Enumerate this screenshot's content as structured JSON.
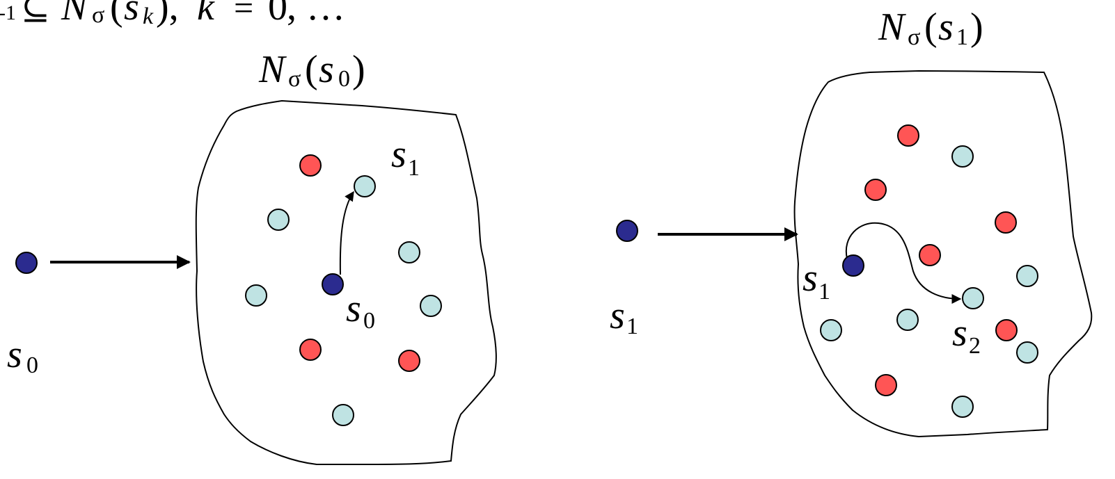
{
  "colors": {
    "current_state": "#2b2b8f",
    "red_state": "#ff5555",
    "cyan_state": "#bfe3e3"
  },
  "math": {
    "top_formula": {
      "sub1": "-1",
      "set_symbol": "⊆",
      "N": "N",
      "sigma": "σ",
      "open": "(",
      "s": "s",
      "k": "k",
      "close_comma": "),",
      "k2": "k",
      "eq": "=",
      "zero": "0",
      "ellipsis": ", …"
    },
    "left": {
      "neighborhood": {
        "N": "N",
        "sigma": "σ",
        "open": "(",
        "s": "s",
        "sub": "0",
        "close": ")"
      },
      "outside_label": {
        "s": "s",
        "sub": "0"
      },
      "inner_current": {
        "s": "s",
        "sub": "0"
      },
      "inner_next": {
        "s": "s",
        "sub": "1"
      }
    },
    "right": {
      "neighborhood": {
        "N": "N",
        "sigma": "σ",
        "open": "(",
        "s": "s",
        "sub": "1",
        "close": ")"
      },
      "outside_label": {
        "s": "s",
        "sub": "1"
      },
      "inner_current": {
        "s": "s",
        "sub": "1"
      },
      "inner_next": {
        "s": "s",
        "sub": "2"
      }
    }
  }
}
